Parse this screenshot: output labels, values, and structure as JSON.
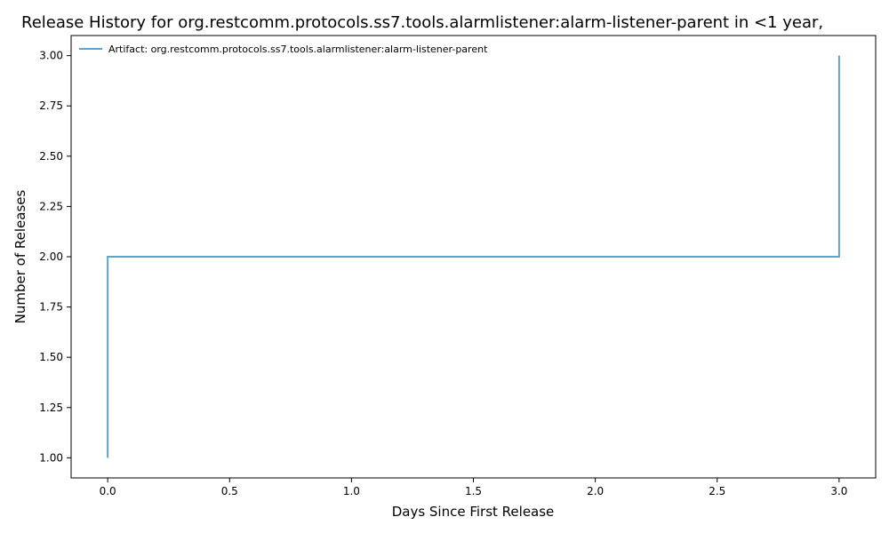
{
  "chart_data": {
    "type": "line",
    "title": "Release History for org.restcomm.protocols.ss7.tools.alarmlistener:alarm-listener-parent in <1 year,",
    "xlabel": "Days Since First Release",
    "ylabel": "Number of Releases",
    "xlim": [
      -0.15,
      3.15
    ],
    "ylim": [
      0.9,
      3.1
    ],
    "xticks": [
      0.0,
      0.5,
      1.0,
      1.5,
      2.0,
      2.5,
      3.0
    ],
    "xtick_labels": [
      "0.0",
      "0.5",
      "1.0",
      "1.5",
      "2.0",
      "2.5",
      "3.0"
    ],
    "yticks": [
      1.0,
      1.25,
      1.5,
      1.75,
      2.0,
      2.25,
      2.5,
      2.75,
      3.0
    ],
    "ytick_labels": [
      "1.00",
      "1.25",
      "1.50",
      "1.75",
      "2.00",
      "2.25",
      "2.50",
      "2.75",
      "3.00"
    ],
    "grid": false,
    "legend_position": "top-left",
    "step": "post",
    "series": [
      {
        "name": "Artifact: org.restcomm.protocols.ss7.tools.alarmlistener:alarm-listener-parent",
        "color": "#5ba3cf",
        "x": [
          0,
          0,
          3,
          3
        ],
        "y": [
          1,
          2,
          2,
          3
        ]
      }
    ]
  }
}
